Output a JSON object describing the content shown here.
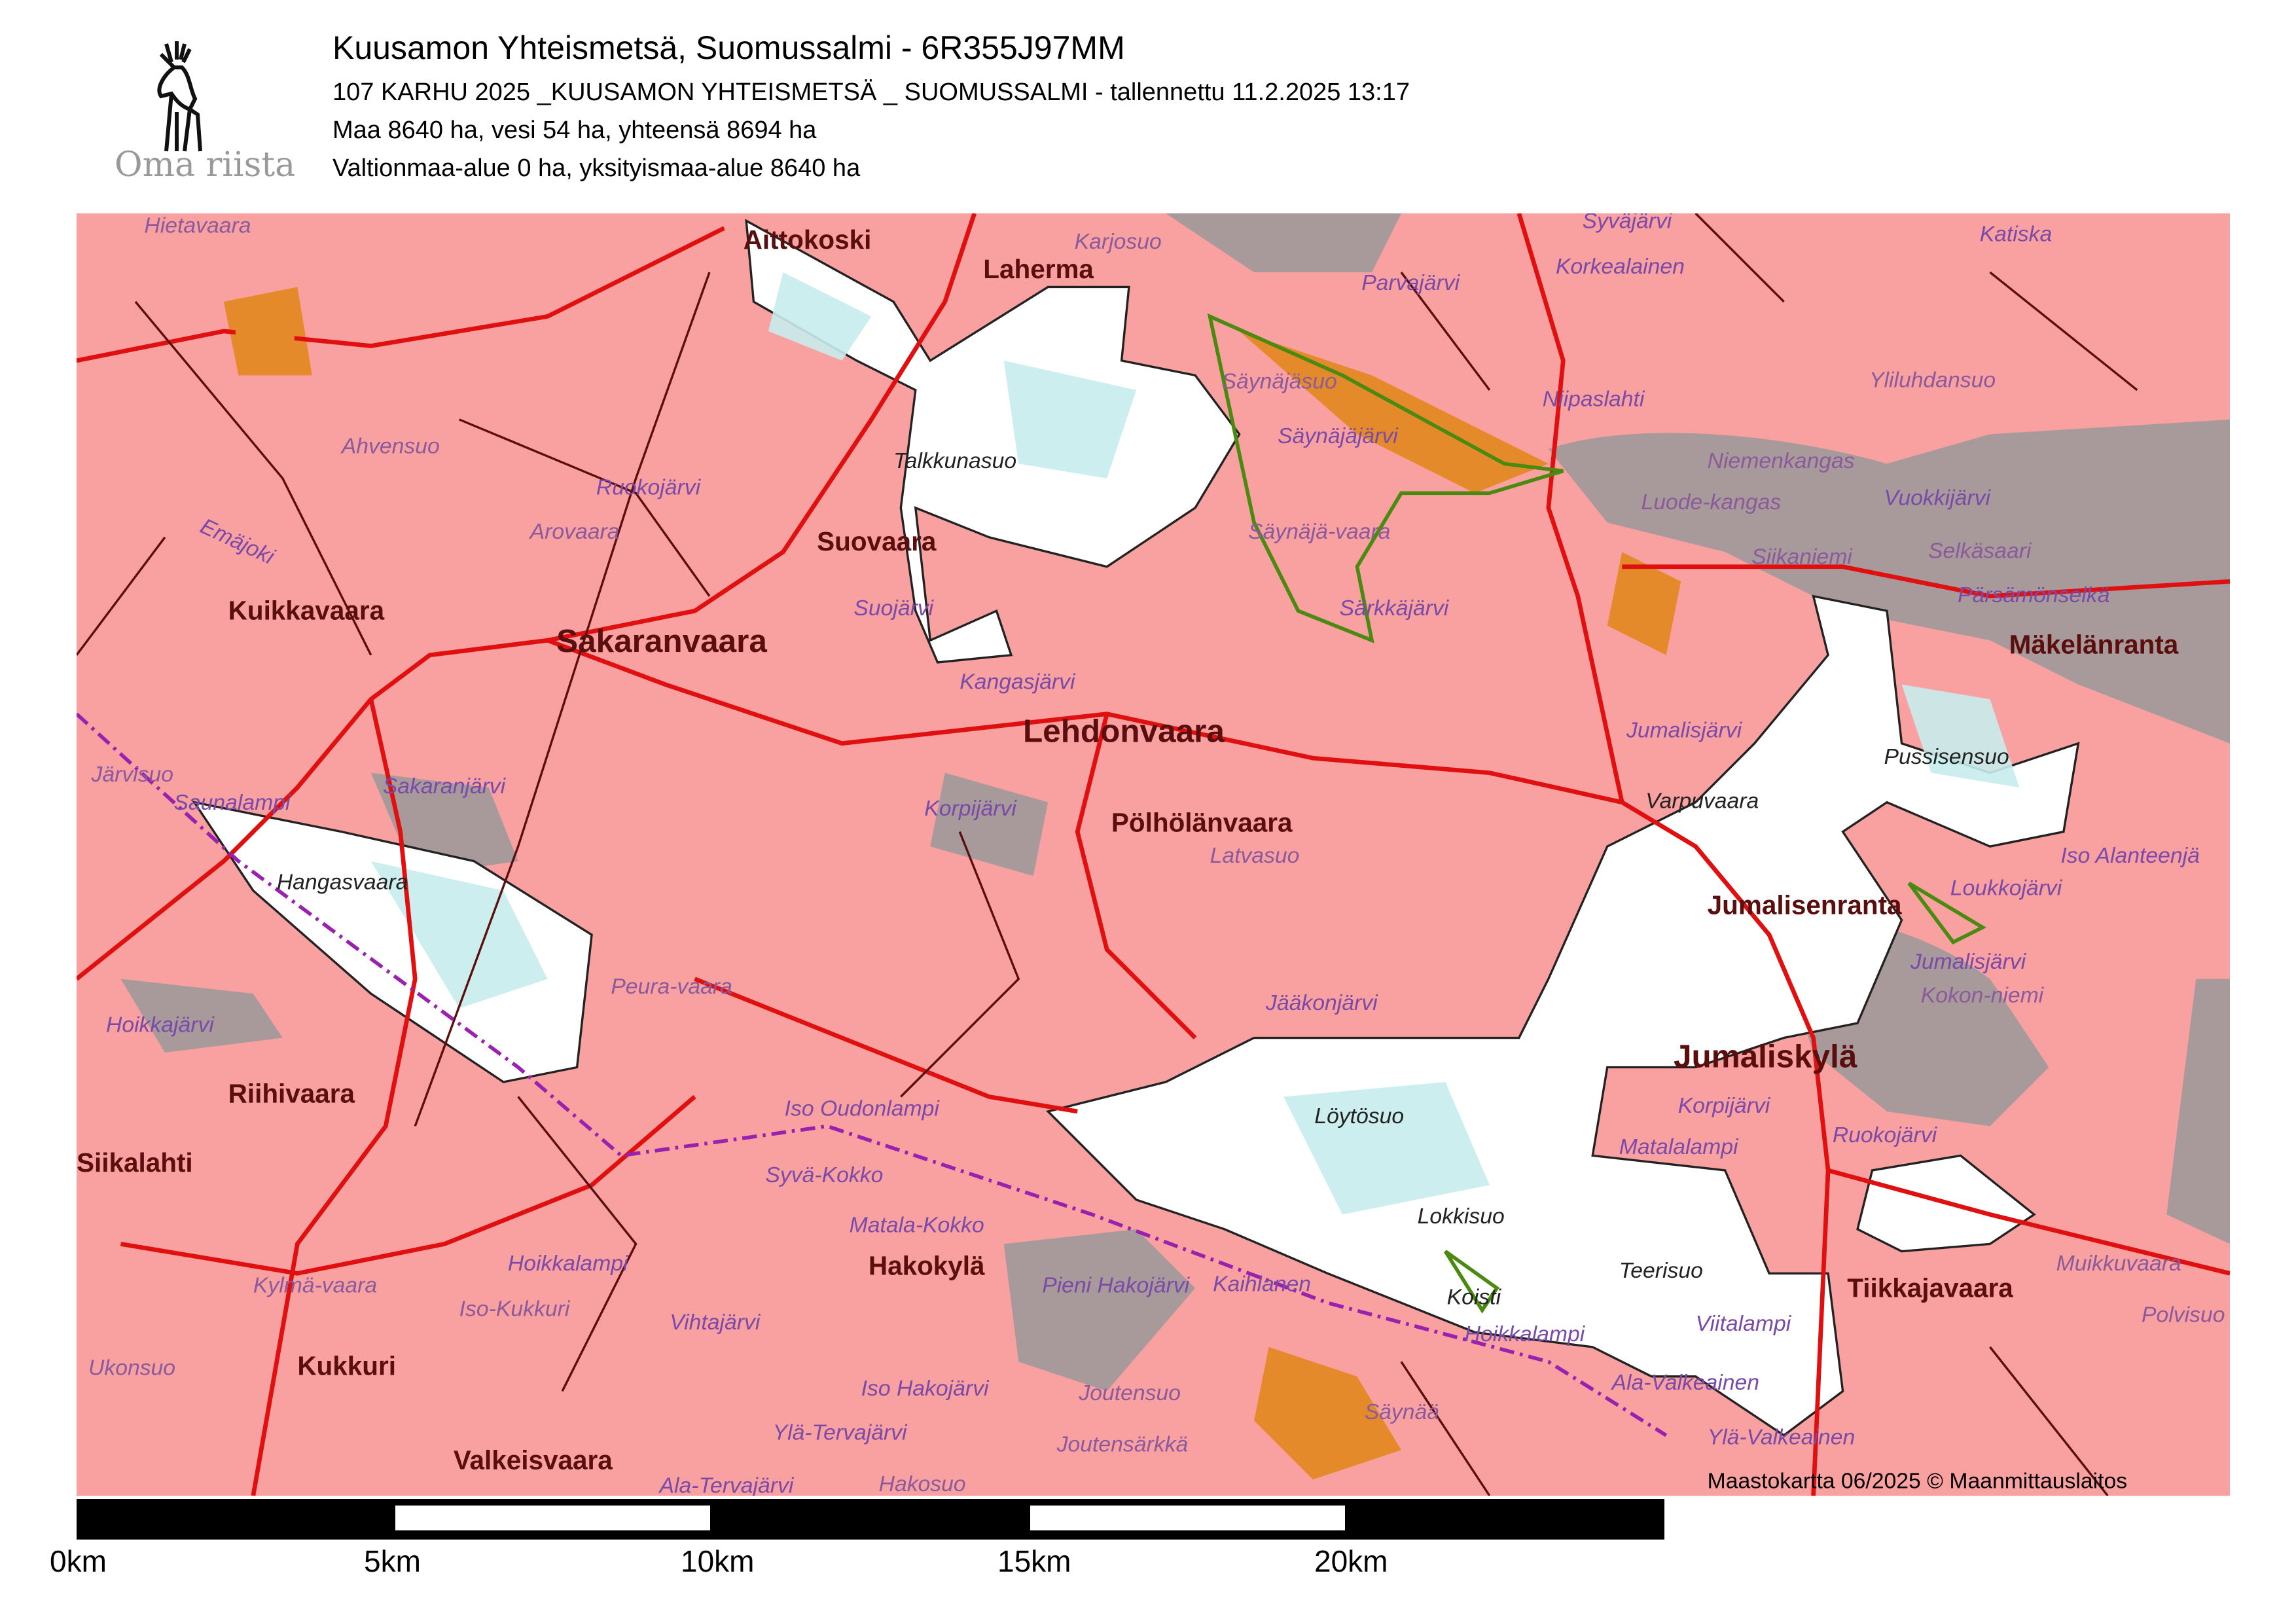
{
  "header": {
    "title": "Kuusamon Yhteismetsä, Suomussalmi - 6R355J97MM",
    "subtitle": "107 KARHU 2025 _KUUSAMON YHTEISMETSÄ _ SUOMUSSALMI - tallennettu 11.2.2025 13:17",
    "areas": "Maa 8640 ha, vesi 54 ha, yhteensä 8694 ha",
    "ownership": "Valtionmaa-alue 0 ha, yksityismaa-alue 8640 ha"
  },
  "logo": {
    "text": "Oma riista",
    "icon": "moose-icon"
  },
  "map": {
    "copyright": "Maastokartta 06/2025 © Maanmittauslaitos",
    "colors": {
      "private_land": "#f9a0a0",
      "water": "#a89a9a",
      "hunting_area": "#ffffff",
      "roads": "#e01010",
      "boundary": "#9a20b0"
    },
    "places": [
      "Hietavaara",
      "Aittokoski",
      "Laherma",
      "Karjosuo",
      "Parvajärvi",
      "Syväjärvi",
      "Korkealainen",
      "Katiska",
      "Säynäjäsuo",
      "Säynäjäjärvi",
      "Yliluhdansuo",
      "Niipaslahti",
      "Niemenkangas",
      "Vuokkijärvi",
      "Luode-kangas",
      "Siikaniemi",
      "Selkäsaari",
      "Pärsämönselkä",
      "Mäkelänranta",
      "Ahvensuo",
      "Talkkunasuo",
      "Ruokojärvi",
      "Arovaara",
      "Emäjoki",
      "Suovaara",
      "Säynäjä-vaara",
      "Kuikkavaara",
      "Sakaranvaara",
      "Suojärvi",
      "Särkkäjärvi",
      "Kangasjärvi",
      "Lehdonvaara",
      "Jumalisjärvi",
      "Pussisensuo",
      "Varpuvaara",
      "Järvisuo",
      "Saunalampi",
      "Sakaranjärvi",
      "Korpijärvi",
      "Pölhölänvaara",
      "Latvasuo",
      "Iso Alanteenjä",
      "Hangasvaara",
      "Loukkojärvi",
      "Jumalisenranta",
      "Jumalisjärvi",
      "Peura-vaara",
      "Kokon-niemi",
      "Jääkonjärvi",
      "Hoikkajärvi",
      "Jumaliskylä",
      "Riihivaara",
      "Korpijärvi",
      "Iso Oudonlampi",
      "Löytösuo",
      "Ruokojärvi",
      "Matalalampi",
      "Siikalahti",
      "Syvä-Kokko",
      "Lokkisuo",
      "Matala-Kokko",
      "Hoikkalampi",
      "Hakokylä",
      "Pieni Hakojärvi",
      "Kaihlanen",
      "Teerisuo",
      "Muikkuvaara",
      "Kylmä-vaara",
      "Koisti",
      "Tiikkajavaara",
      "Polvisuo",
      "Iso-Kukkuri",
      "Vihtajärvi",
      "Hoikkalampi",
      "Viitalampi",
      "Ukonsuo",
      "Kukkuri",
      "Iso Hakojärvi",
      "Ala-Valkeainen",
      "Joutensuo",
      "Säynää",
      "Ylä-Tervajärvi",
      "Ylä-Valkeainen",
      "Joutensärkkä",
      "Valkeisvaara",
      "Ala-Tervajärvi",
      "Hakosuo"
    ]
  },
  "scalebar": {
    "labels": [
      "0km",
      "5km",
      "10km",
      "15km",
      "20km"
    ]
  }
}
